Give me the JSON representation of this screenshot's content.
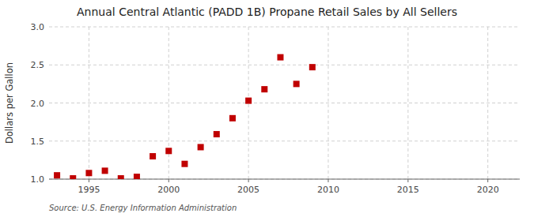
{
  "chart_data": {
    "type": "scatter",
    "title": "Annual Central Atlantic (PADD 1B) Propane Retail Sales by All Sellers",
    "y_label": "Dollars per Gallon",
    "source": "Source: U.S. Energy Information Administration",
    "x": [
      1993,
      1994,
      1995,
      1996,
      1997,
      1998,
      1999,
      2000,
      2001,
      2002,
      2003,
      2004,
      2005,
      2006,
      2007,
      2008,
      2009
    ],
    "values": [
      1.05,
      1.01,
      1.08,
      1.11,
      1.01,
      1.03,
      1.3,
      1.37,
      1.2,
      1.42,
      1.59,
      1.8,
      2.03,
      2.18,
      2.6,
      2.25,
      2.47
    ],
    "color": "#c00000",
    "marker": "square",
    "xlim": [
      1992.5,
      2022
    ],
    "ylim": [
      1.0,
      3.0
    ],
    "xticks": [
      1995,
      2000,
      2005,
      2010,
      2015,
      2020
    ],
    "yticks": [
      {
        "value": 1.0,
        "label": "1.0"
      },
      1.5,
      {
        "value": 2.0,
        "label": "2.0"
      },
      2.5,
      {
        "value": 3.0,
        "label": "3.0"
      }
    ],
    "grid": true
  }
}
